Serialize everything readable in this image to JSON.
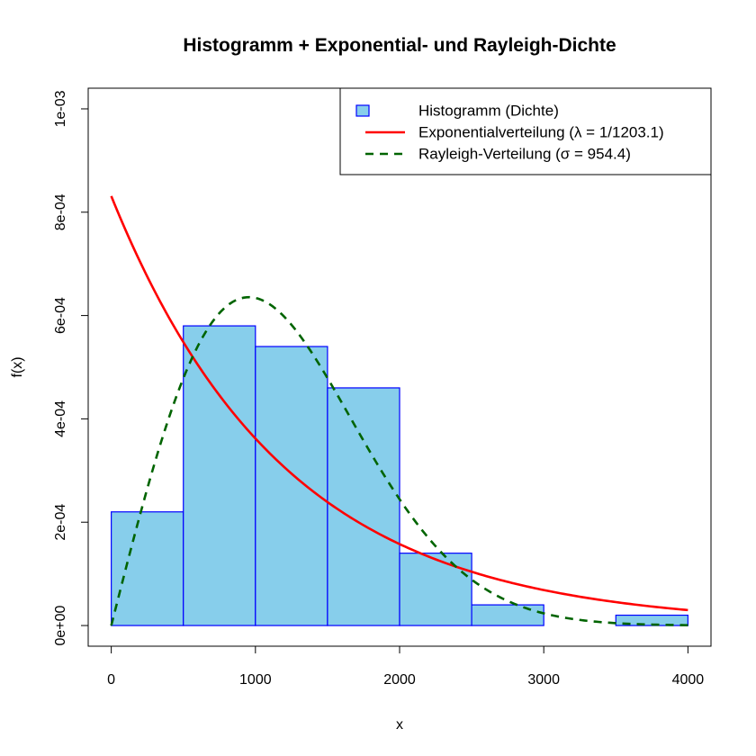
{
  "chart_data": {
    "type": "bar",
    "title": "Histogramm + Exponential- und Rayleigh-Dichte",
    "xlabel": "x",
    "ylabel": "f(x)",
    "xlim": [
      -160,
      4160
    ],
    "ylim": [
      -4e-05,
      0.00104
    ],
    "x_ticks": [
      0,
      1000,
      2000,
      3000,
      4000
    ],
    "x_tick_labels": [
      "0",
      "1000",
      "2000",
      "3000",
      "4000"
    ],
    "y_ticks": [
      0,
      0.0002,
      0.0004,
      0.0006,
      0.0008,
      0.001
    ],
    "y_tick_labels": [
      "0e+00",
      "2e-04",
      "4e-04",
      "6e-04",
      "8e-04",
      "1e-03"
    ],
    "grid": false,
    "legend_position": "top-right",
    "histogram": {
      "name": "Histogramm (Dichte)",
      "bins": [
        {
          "start": 0,
          "end": 500,
          "density": 0.00022
        },
        {
          "start": 500,
          "end": 1000,
          "density": 0.00058
        },
        {
          "start": 1000,
          "end": 1500,
          "density": 0.00054
        },
        {
          "start": 1500,
          "end": 2000,
          "density": 0.00046
        },
        {
          "start": 2000,
          "end": 2500,
          "density": 0.00014
        },
        {
          "start": 2500,
          "end": 3000,
          "density": 4e-05
        },
        {
          "start": 3000,
          "end": 3500,
          "density": 0
        },
        {
          "start": 3500,
          "end": 4000,
          "density": 2e-05
        }
      ],
      "fill": "#87CEEB",
      "border": "#0000FF"
    },
    "series": [
      {
        "name": "Exponentialverteilung (λ = 1/1203.1)",
        "type": "line",
        "distribution": "exponential",
        "mean": 1203.1,
        "x_range": [
          0,
          4000
        ],
        "color": "#FF0000",
        "linestyle": "solid"
      },
      {
        "name": "Rayleigh-Verteilung (σ = 954.4)",
        "type": "line",
        "distribution": "rayleigh",
        "sigma": 954.4,
        "x_range": [
          0,
          4000
        ],
        "color": "#006400",
        "linestyle": "dashed"
      }
    ]
  }
}
